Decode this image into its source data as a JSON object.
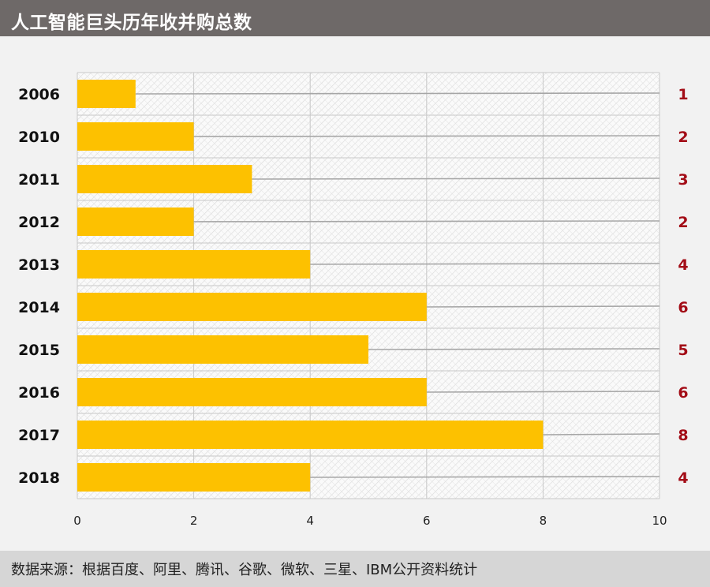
{
  "header": {
    "title": "人工智能巨头历年收并购总数"
  },
  "footer": {
    "source": "数据来源：根据百度、阿里、腾讯、谷歌、微软、三星、IBM公开资料统计"
  },
  "colors": {
    "bar": "#fdc100",
    "value_label": "#a30d17",
    "leader_line": "#a6a6a6",
    "grid": "#c8c8c8",
    "header_bg": "#6e6968",
    "footer_bg": "#d6d6d6"
  },
  "chart_data": {
    "type": "bar",
    "orientation": "horizontal",
    "categories": [
      "2006",
      "2010",
      "2011",
      "2012",
      "2013",
      "2014",
      "2015",
      "2016",
      "2017",
      "2018"
    ],
    "values": [
      1,
      2,
      3,
      2,
      4,
      6,
      5,
      6,
      8,
      4
    ],
    "xlim": [
      0,
      10
    ],
    "xticks": [
      "0",
      "2",
      "4",
      "6",
      "8",
      "10"
    ],
    "title": "人工智能巨头历年收并购总数",
    "grid": true,
    "value_labels_position": "right"
  }
}
